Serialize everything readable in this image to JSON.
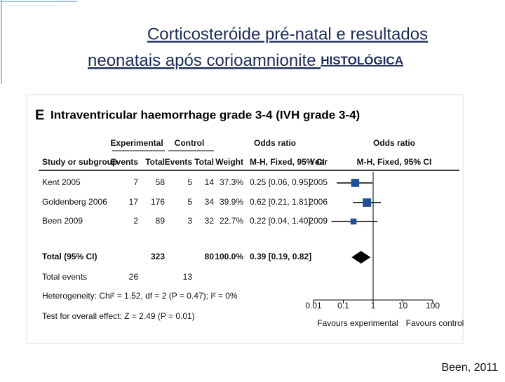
{
  "slide": {
    "title_line1": "Corticosteróide pré-natal e resultados",
    "title_line2": "neonatais após corioamnionite ",
    "title_suffix": "HISTOLÓGICA",
    "citation": "Been, 2011"
  },
  "figure": {
    "panel": "E",
    "title": "Intraventricular haemorrhage grade 3-4 (IVH grade 3-4)",
    "group_headers": [
      "Experimental",
      "Control",
      "Odds ratio",
      "Odds ratio"
    ],
    "columns": [
      "Study or subgroup",
      "Events",
      "Total",
      "Events",
      "Total",
      "Weight",
      "M-H, Fixed, 95% CI",
      "Year",
      "M-H, Fixed, 95% CI"
    ],
    "rows": [
      [
        "Kent 2005",
        "7",
        "58",
        "5",
        "14",
        "37.3%",
        "0.25 [0.06, 0.95]",
        "2005"
      ],
      [
        "Goldenberg 2006",
        "17",
        "176",
        "5",
        "34",
        "39.9%",
        "0.62 [0.21, 1.81]",
        "2006"
      ],
      [
        "Been 2009",
        "2",
        "89",
        "3",
        "32",
        "22.7%",
        "0.22 [0.04, 1.40]",
        "2009"
      ]
    ],
    "total": [
      "Total (95% CI)",
      "323",
      "80",
      "100.0%",
      "0.39 [0.19, 0.82]"
    ],
    "total_events": [
      "Total events",
      "26",
      "13"
    ],
    "heterogeneity": "Heterogeneity: Chi² = 1.52, df = 2 (P = 0.47); I² = 0%",
    "overall": "Test for overall effect: Z = 2.49 (P = 0.01)",
    "forest": {
      "log": true,
      "xlim": [
        0.01,
        100
      ],
      "xticks": [
        0.01,
        0.1,
        1,
        10,
        100
      ],
      "null_line": 1,
      "studies": [
        {
          "or": 0.25,
          "ci": [
            0.06,
            0.95
          ],
          "weight": 37.3
        },
        {
          "or": 0.62,
          "ci": [
            0.21,
            1.81
          ],
          "weight": 39.9
        },
        {
          "or": 0.22,
          "ci": [
            0.04,
            1.4
          ],
          "weight": 22.7
        }
      ],
      "total": {
        "or": 0.39,
        "ci": [
          0.19,
          0.82
        ]
      },
      "favours": [
        "Favours experimental",
        "Favours control"
      ],
      "color": "#1f4e9c"
    }
  }
}
